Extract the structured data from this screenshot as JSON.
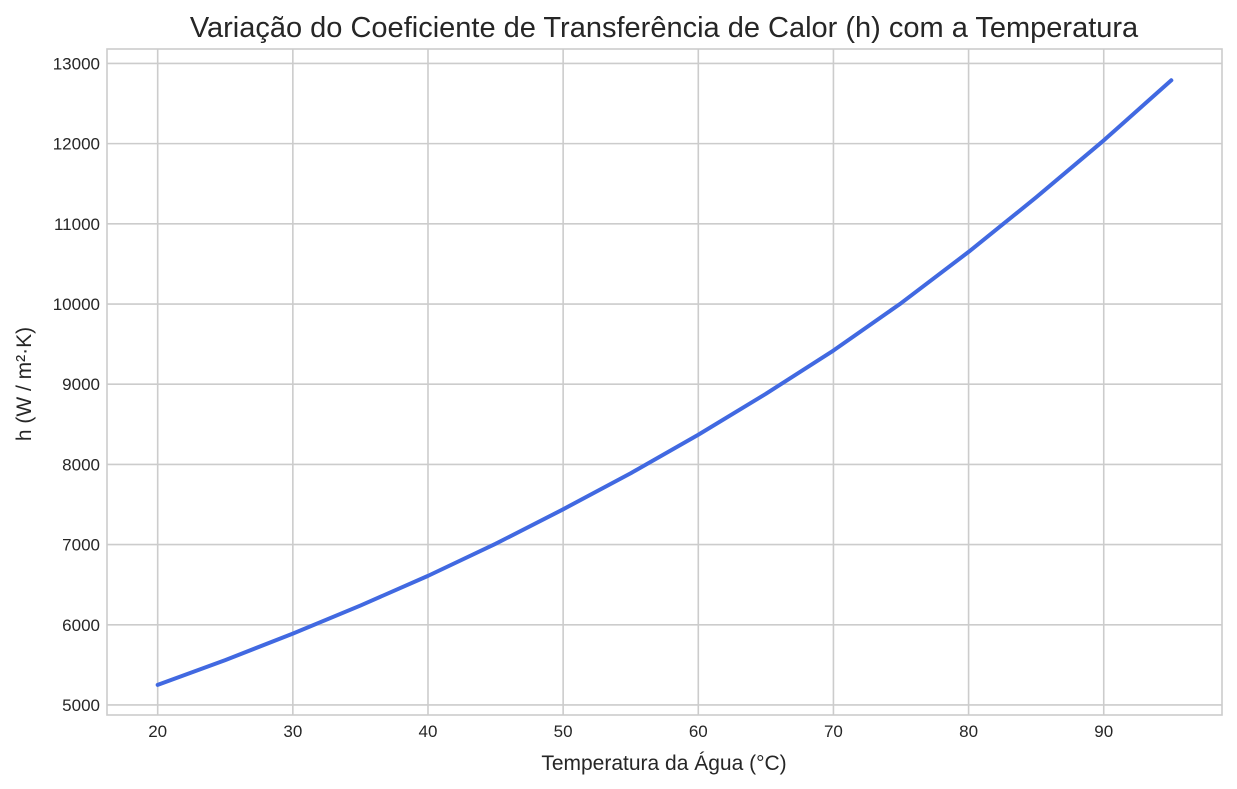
{
  "chart_data": {
    "type": "line",
    "title": "Variação do Coeficiente de Transferência de Calor (h) com a Temperatura",
    "xlabel": "Temperatura da Água (°C)",
    "ylabel": "h (W / m²·K)",
    "xlim": [
      16.25,
      98.75
    ],
    "ylim": [
      4875,
      13180
    ],
    "xticks": [
      20,
      30,
      40,
      50,
      60,
      70,
      80,
      90
    ],
    "yticks": [
      5000,
      6000,
      7000,
      8000,
      9000,
      10000,
      11000,
      12000,
      13000
    ],
    "xtick_labels": [
      "20",
      "30",
      "40",
      "50",
      "60",
      "70",
      "80",
      "90"
    ],
    "ytick_labels": [
      "5000",
      "6000",
      "7000",
      "8000",
      "9000",
      "10000",
      "11000",
      "12000",
      "13000"
    ],
    "grid": true,
    "series": [
      {
        "color": "#4169e1",
        "x": [
          20,
          25,
          30,
          35,
          40,
          45,
          50,
          55,
          60,
          65,
          70,
          75,
          80,
          85,
          90,
          95
        ],
        "y": [
          5250,
          5560,
          5890,
          6240,
          6610,
          7010,
          7440,
          7890,
          8370,
          8880,
          9420,
          10010,
          10650,
          11330,
          12040,
          12790
        ]
      }
    ]
  }
}
